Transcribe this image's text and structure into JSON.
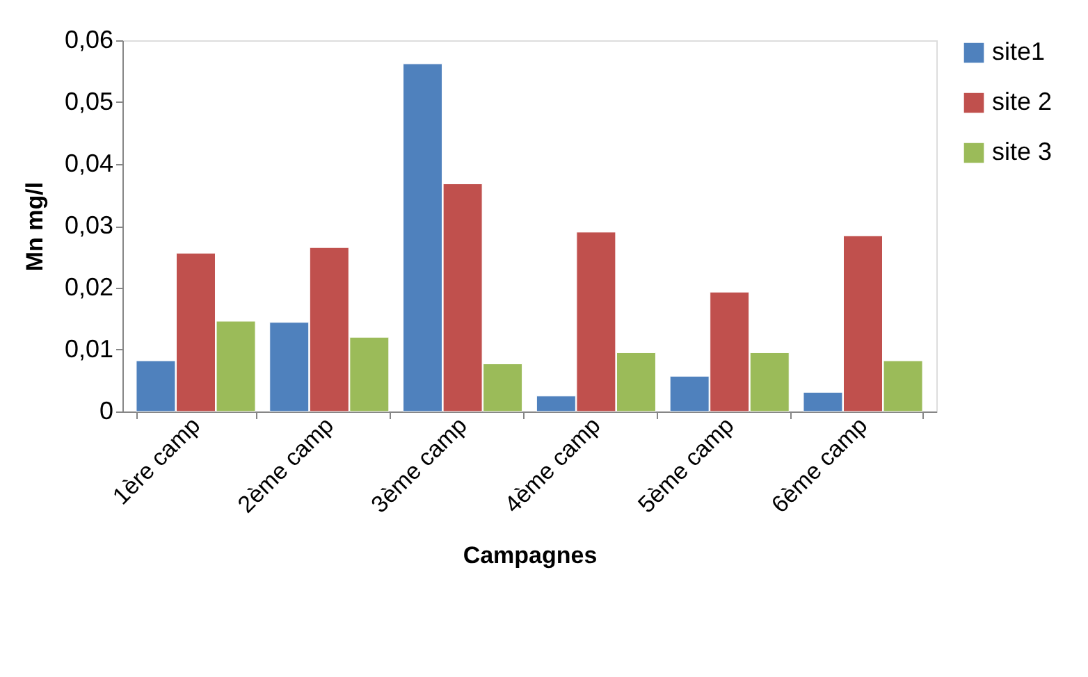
{
  "chart_data": {
    "type": "bar",
    "xlabel": "Campagnes",
    "ylabel": "Mn mg/l",
    "categories": [
      "1ère camp",
      "2ème camp",
      "3ème camp",
      "4ème camp",
      "5ème camp",
      "6ème camp"
    ],
    "series": [
      {
        "name": "site1",
        "color": "#4f81bd",
        "values": [
          0.0082,
          0.0144,
          0.0562,
          0.0025,
          0.0057,
          0.0031
        ]
      },
      {
        "name": "site 2",
        "color": "#c0504d",
        "values": [
          0.0256,
          0.0265,
          0.0368,
          0.029,
          0.0193,
          0.0284
        ]
      },
      {
        "name": "site 3",
        "color": "#9bbb59",
        "values": [
          0.0146,
          0.012,
          0.0077,
          0.0095,
          0.0095,
          0.0082
        ]
      }
    ],
    "ylim": [
      0,
      0.06
    ],
    "yticks": [
      0,
      {
        "value": 0.01,
        "label": "0,01"
      },
      {
        "value": 0.02,
        "label": "0,02"
      },
      {
        "value": 0.03,
        "label": "0,03"
      },
      {
        "value": 0.04,
        "label": "0,04"
      },
      {
        "value": 0.05,
        "label": "0,05"
      },
      {
        "value": 0.06,
        "label": "0,06"
      }
    ],
    "grid": false,
    "legend": "right"
  }
}
